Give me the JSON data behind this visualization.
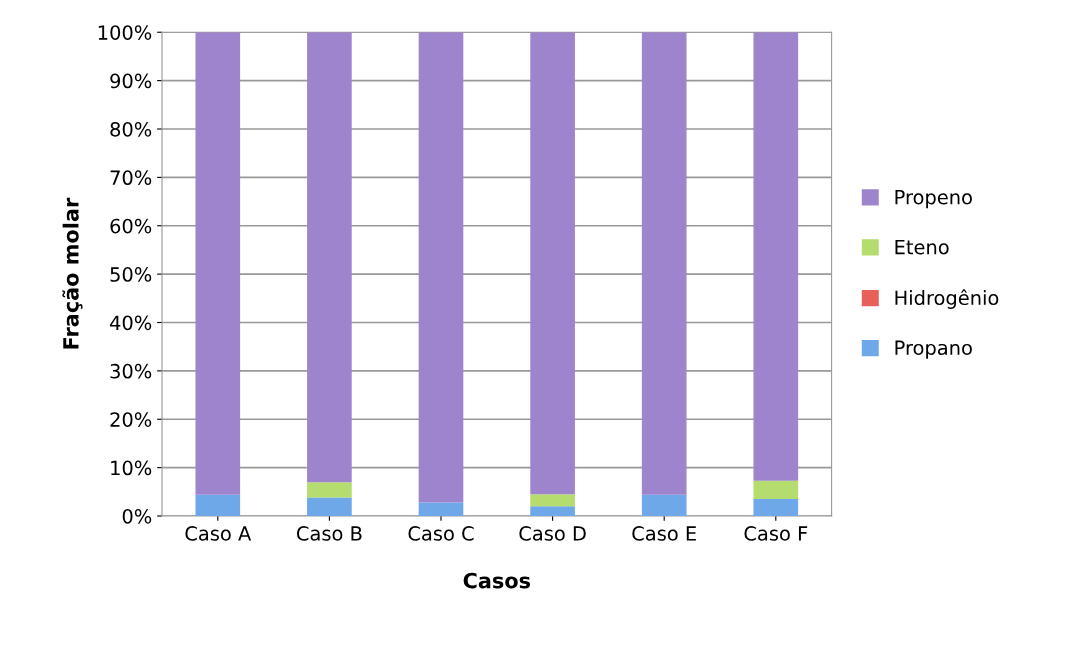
{
  "chart_data": {
    "type": "bar",
    "stacked": true,
    "xlabel": "Casos",
    "ylabel": "Fração molar",
    "categories": [
      "Caso A",
      "Caso B",
      "Caso C",
      "Caso D",
      "Caso E",
      "Caso F"
    ],
    "series": [
      {
        "name": "Propano",
        "color": "#6fa8e8",
        "values": [
          4.4,
          3.8,
          2.8,
          2.0,
          4.4,
          3.5
        ]
      },
      {
        "name": "Hidrogênio",
        "color": "#e8605a",
        "values": [
          0,
          0,
          0,
          0,
          0,
          0
        ]
      },
      {
        "name": "Eteno",
        "color": "#b4dc6e",
        "values": [
          0,
          3.2,
          0,
          2.5,
          0,
          3.8
        ]
      },
      {
        "name": "Propeno",
        "color": "#9e84cc",
        "values": [
          95.6,
          93.0,
          97.2,
          95.5,
          95.6,
          92.7
        ]
      }
    ],
    "ylim": [
      0,
      100
    ],
    "yticks": [
      {
        "value": 0,
        "label": "0%"
      },
      {
        "value": 10,
        "label": "10%"
      },
      {
        "value": 20,
        "label": "20%"
      },
      {
        "value": 30,
        "label": "30%"
      },
      {
        "value": 40,
        "label": "40%"
      },
      {
        "value": 50,
        "label": "50%"
      },
      {
        "value": 60,
        "label": "60%"
      },
      {
        "value": 70,
        "label": "70%"
      },
      {
        "value": 80,
        "label": "80%"
      },
      {
        "value": 90,
        "label": "90%"
      },
      {
        "value": 100,
        "label": "100%"
      }
    ],
    "grid": "y",
    "legend": "right"
  }
}
